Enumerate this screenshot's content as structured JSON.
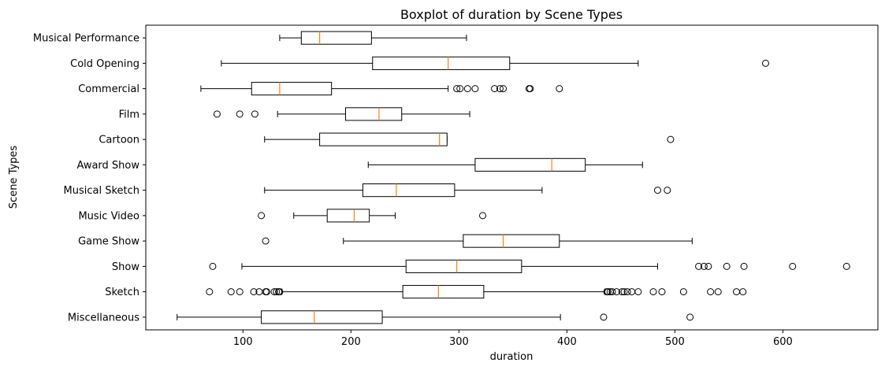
{
  "chart_data": {
    "type": "boxplot",
    "orientation": "horizontal",
    "title": "Boxplot of duration by Scene Types",
    "xlabel": "duration",
    "ylabel": "Scene Types",
    "xlim": [
      10,
      688
    ],
    "xticks": [
      100,
      200,
      300,
      400,
      500,
      600
    ],
    "grid": false,
    "colors": {
      "box": "#000000",
      "median": "#ff7f0e",
      "flier": "#000000"
    },
    "categories": [
      "Musical Performance",
      "Cold Opening",
      "Commercial",
      "Film",
      "Cartoon",
      "Award Show",
      "Musical Sketch",
      "Music Video",
      "Game Show",
      "Show",
      "Sketch",
      "Miscellaneous"
    ],
    "boxes": [
      {
        "category": "Musical Performance",
        "whislo": 134,
        "q1": 154,
        "med": 171,
        "q3": 219,
        "whishi": 307,
        "fliers": []
      },
      {
        "category": "Cold Opening",
        "whislo": 80,
        "q1": 220,
        "med": 290,
        "q3": 347,
        "whishi": 466,
        "fliers": [
          584
        ]
      },
      {
        "category": "Commercial",
        "whislo": 61,
        "q1": 108,
        "med": 134,
        "q3": 182,
        "whishi": 290,
        "fliers": [
          298,
          301,
          308,
          315,
          333,
          338,
          341,
          365,
          366,
          393
        ]
      },
      {
        "category": "Film",
        "whislo": 132,
        "q1": 195,
        "med": 226,
        "q3": 247,
        "whishi": 310,
        "fliers": [
          76,
          97,
          111
        ]
      },
      {
        "category": "Cartoon",
        "whislo": 120,
        "q1": 171,
        "med": 282,
        "q3": 289,
        "whishi": 289,
        "fliers": [
          496
        ]
      },
      {
        "category": "Award Show",
        "whislo": 216,
        "q1": 315,
        "med": 386,
        "q3": 417,
        "whishi": 470,
        "fliers": []
      },
      {
        "category": "Musical Sketch",
        "whislo": 120,
        "q1": 211,
        "med": 242,
        "q3": 296,
        "whishi": 377,
        "fliers": [
          484,
          493
        ]
      },
      {
        "category": "Music Video",
        "whislo": 147,
        "q1": 178,
        "med": 203,
        "q3": 217,
        "whishi": 241,
        "fliers": [
          117,
          322
        ]
      },
      {
        "category": "Game Show",
        "whislo": 193,
        "q1": 304,
        "med": 341,
        "q3": 393,
        "whishi": 516,
        "fliers": [
          121
        ]
      },
      {
        "category": "Show",
        "whislo": 99,
        "q1": 251,
        "med": 298,
        "q3": 358,
        "whishi": 484,
        "fliers": [
          72,
          522,
          527,
          531,
          548,
          564,
          609,
          659
        ]
      },
      {
        "category": "Sketch",
        "whislo": 136,
        "q1": 248,
        "med": 281,
        "q3": 323,
        "whishi": 435,
        "fliers": [
          69,
          89,
          97,
          110,
          115,
          121,
          122,
          129,
          131,
          133,
          134,
          437,
          438,
          440,
          442,
          446,
          451,
          453,
          456,
          460,
          466,
          480,
          488,
          508,
          533,
          540,
          557,
          563
        ]
      },
      {
        "category": "Miscellaneous",
        "whislo": 39,
        "q1": 117,
        "med": 166,
        "q3": 229,
        "whishi": 394,
        "fliers": [
          434,
          514
        ]
      }
    ]
  }
}
